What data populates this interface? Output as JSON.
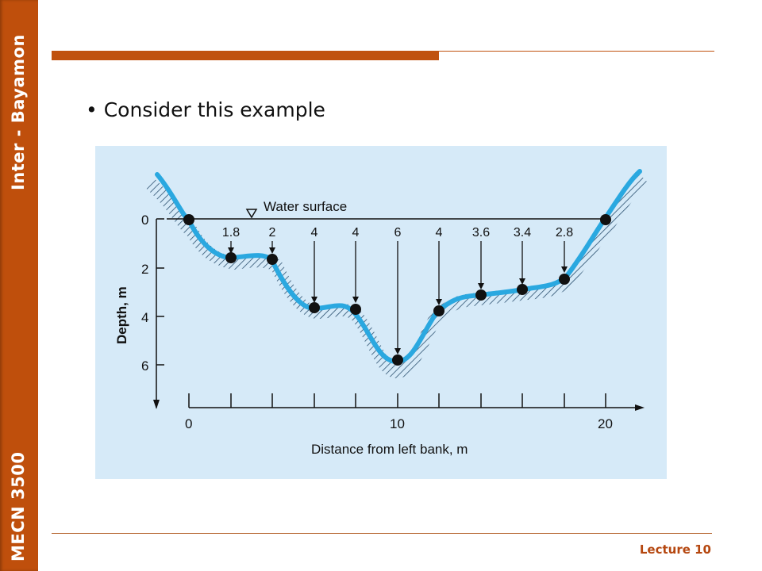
{
  "sidebar": {
    "top_label": "Inter - Bayamon",
    "bottom_label": "MECN 3500"
  },
  "slide": {
    "bullet": "• Consider this example"
  },
  "footer": {
    "label": "Lecture 10"
  },
  "diagram": {
    "water_surface_label": "Water surface",
    "depth_axis_label": "Depth, m",
    "distance_axis_label": "Distance from left bank, m",
    "depth_ticks": [
      "0",
      "2",
      "4",
      "6"
    ],
    "distance_ticks": [
      "0",
      "10",
      "20"
    ],
    "depth_labels": [
      "1.8",
      "2",
      "4",
      "4",
      "6",
      "4",
      "3.6",
      "3.4",
      "2.8"
    ],
    "colors": {
      "panel": "#d6eaf8",
      "channel": "#2aa8e0",
      "axis": "#111111"
    }
  }
}
